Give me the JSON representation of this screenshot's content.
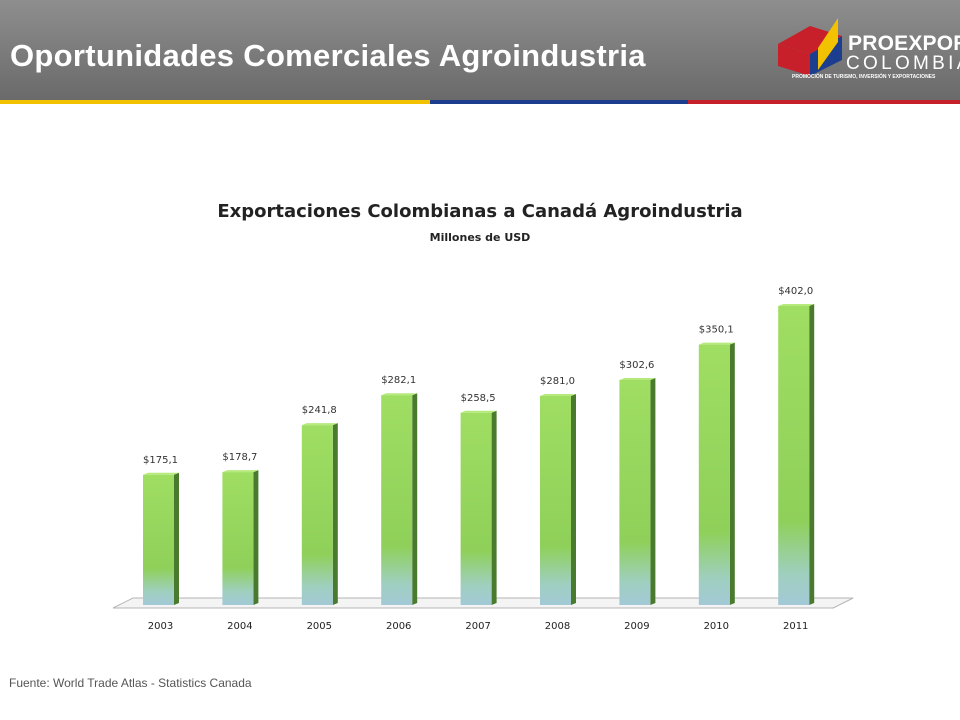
{
  "header": {
    "title": "Oportunidades Comerciales Agroindustria",
    "logo_name": "PROEXPORT",
    "logo_sub": "COLOMBIA",
    "logo_tagline": "PROMOCIÓN DE TURISMO, INVERSIÓN Y EXPORTACIONES"
  },
  "colors": {
    "header_bg": "#7c7c7c",
    "flag_yellow": "#f2c200",
    "flag_blue": "#1d3e8e",
    "flag_red": "#c8202a",
    "bar_green": "#93d65a",
    "bar_base": "#a5cfd8"
  },
  "chart_data": {
    "type": "bar",
    "title": "Exportaciones Colombianas a Canadá Agroindustria",
    "subtitle": "Millones de USD",
    "categories": [
      "2003",
      "2004",
      "2005",
      "2006",
      "2007",
      "2008",
      "2009",
      "2010",
      "2011"
    ],
    "values": [
      175.1,
      178.7,
      241.8,
      282.1,
      258.5,
      281.0,
      302.6,
      350.1,
      402.0
    ],
    "value_labels": [
      "$175,1",
      "$178,7",
      "$241,8",
      "$282,1",
      "$258,5",
      "$281,0",
      "$302,6",
      "$350,1",
      "$402,0"
    ],
    "xlabel": "",
    "ylabel": "",
    "grid": false,
    "style": "3d-bar"
  },
  "footer": {
    "source": "Fuente: World Trade Atlas - Statistics Canada"
  }
}
